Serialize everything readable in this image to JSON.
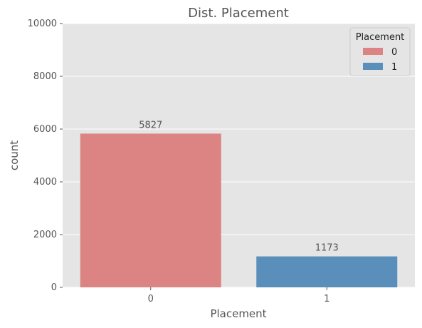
{
  "chart_data": {
    "type": "bar",
    "title": "Dist. Placement",
    "xlabel": "Placement",
    "ylabel": "count",
    "categories": [
      "0",
      "1"
    ],
    "values": [
      5827,
      1173
    ],
    "data_labels": [
      "5827",
      "1173"
    ],
    "ylim": [
      0,
      10000
    ],
    "yticks": [
      0,
      2000,
      4000,
      6000,
      8000,
      10000
    ],
    "ytick_labels": [
      "0",
      "2000",
      "4000",
      "6000",
      "8000",
      "10000"
    ],
    "grid": true,
    "legend": {
      "title": "Placement",
      "placement": "top-right",
      "entries": [
        "0",
        "1"
      ]
    },
    "colors": [
      "#dc8484",
      "#5a8fbc"
    ],
    "background": "#e5e5e5",
    "grid_color": "#ffffff"
  }
}
